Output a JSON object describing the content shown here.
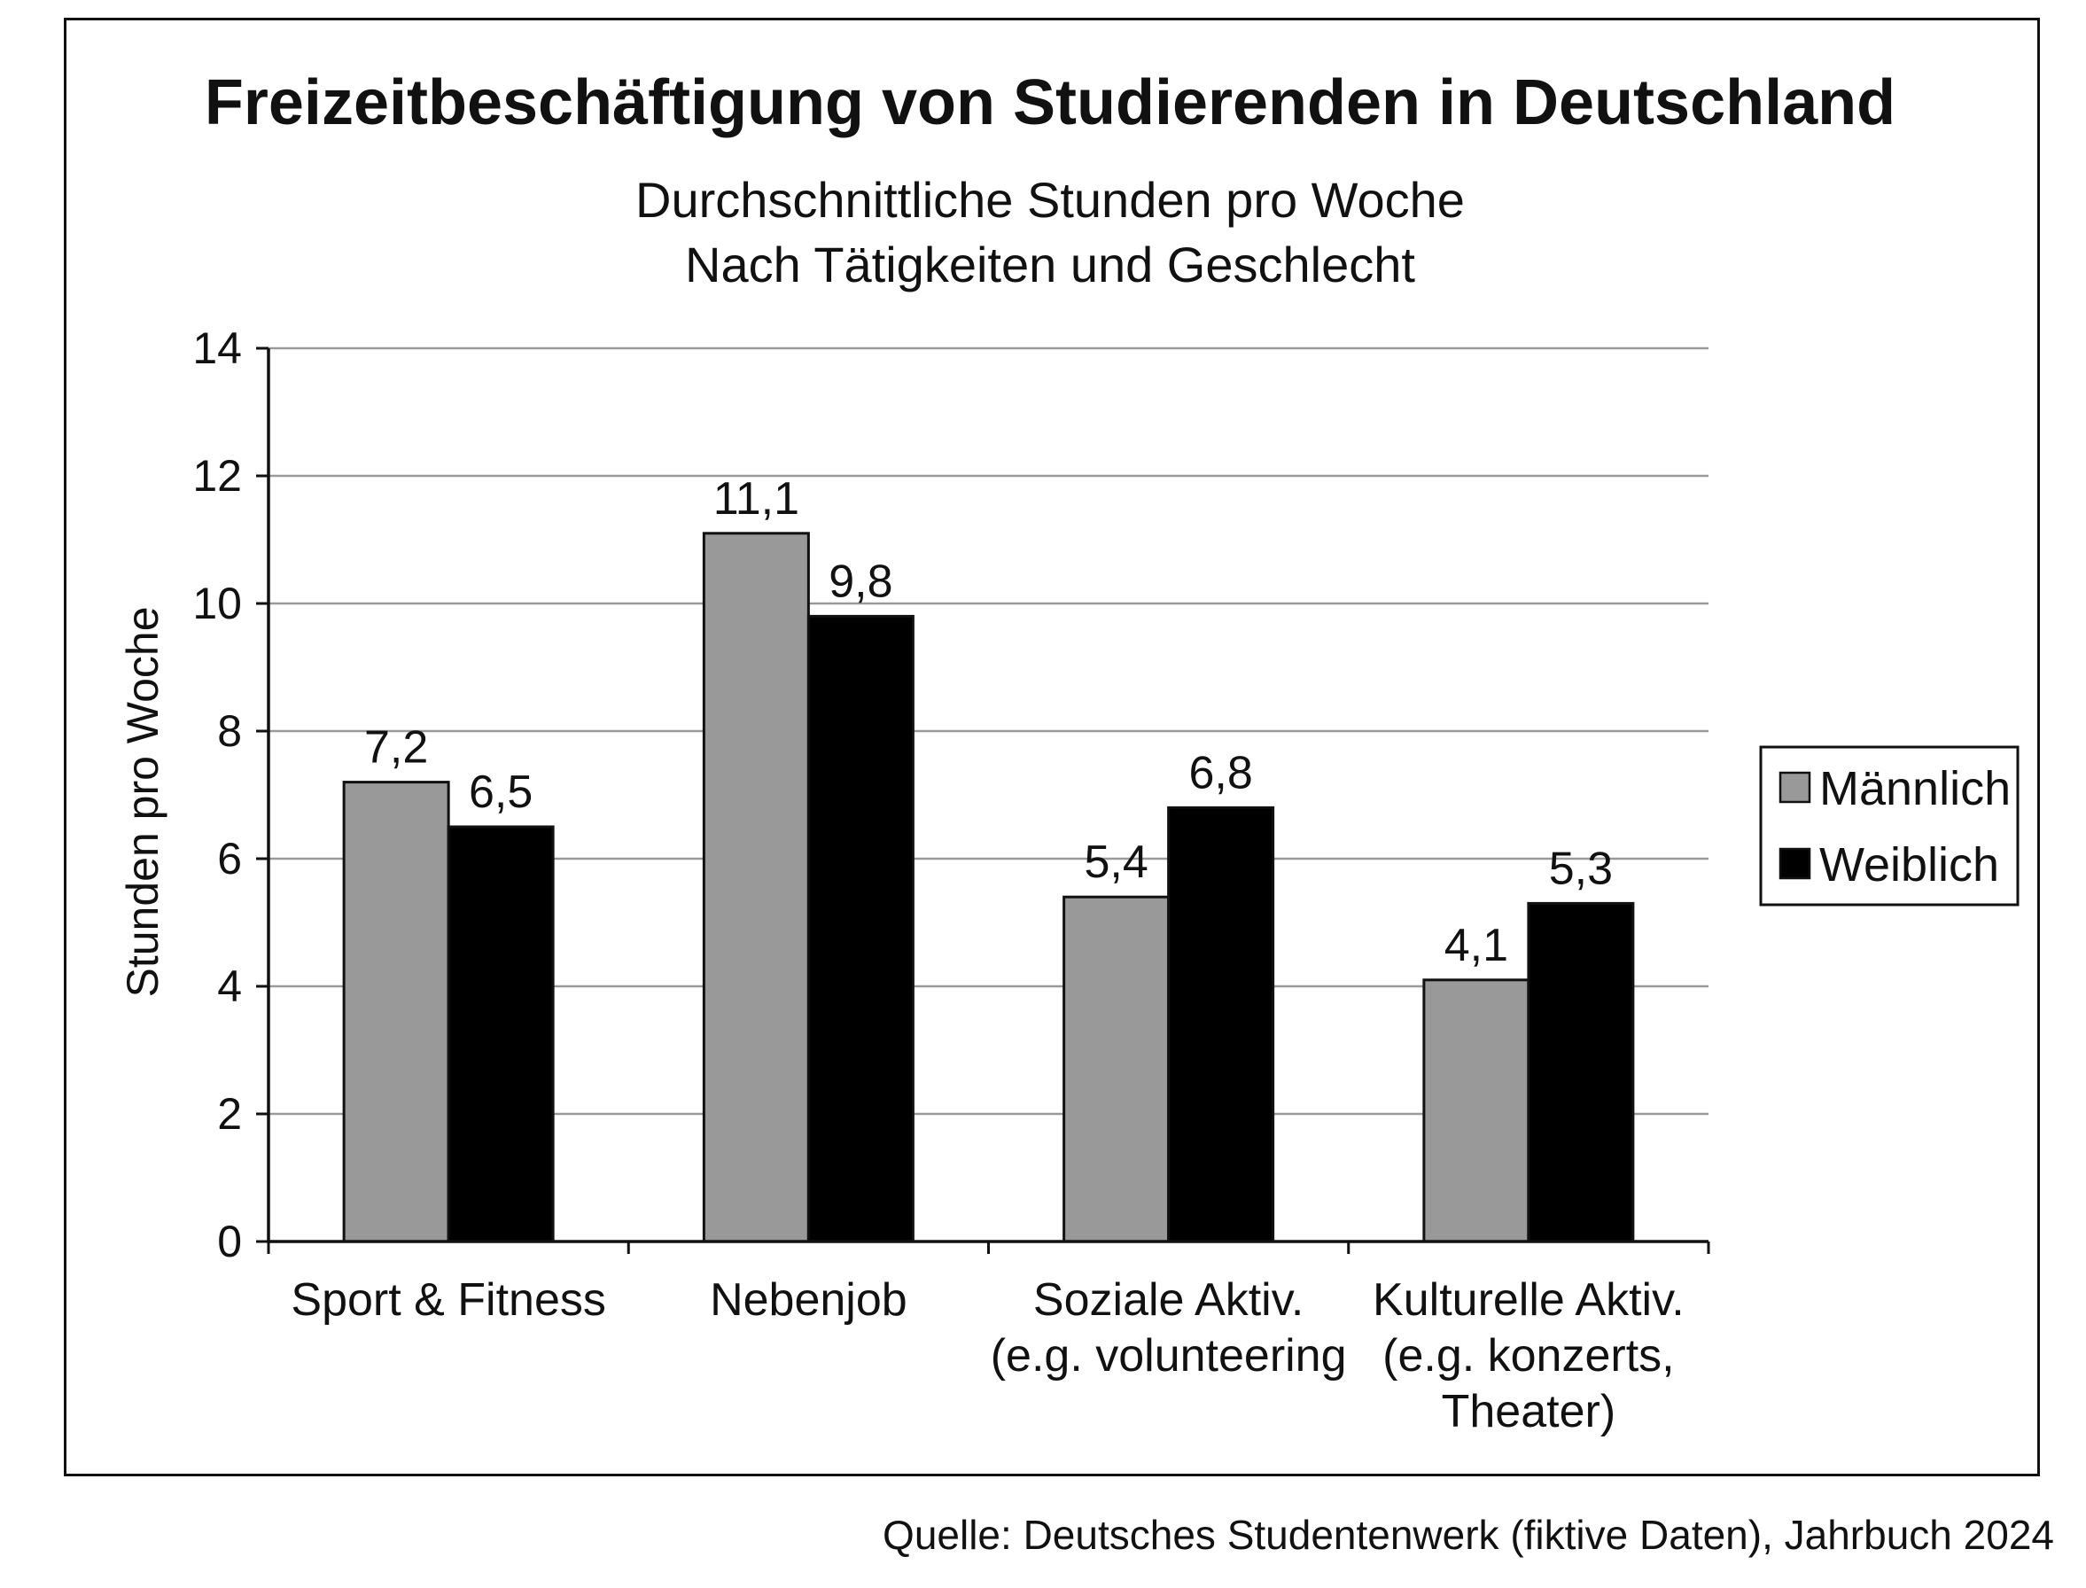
{
  "chart_data": {
    "type": "bar",
    "title": "Freizeitbeschäftigung von Studierenden in Deutschland",
    "subtitle_lines": [
      "Durchschnittliche Stunden pro Woche",
      "Nach Tätigkeiten und Geschlecht"
    ],
    "ylabel": "Stunden pro Woche",
    "xlabel": "",
    "ylim": [
      0,
      14
    ],
    "yticks": [
      "0",
      "2",
      "4",
      "6",
      "8",
      "10",
      "12",
      "14"
    ],
    "grid": true,
    "legend_position": "right",
    "categories": [
      [
        "Sport & Fitness"
      ],
      [
        "Nebenjob"
      ],
      [
        "Soziale Aktiv.",
        "(e.g. volunteering"
      ],
      [
        "Kulturelle Aktiv.",
        "(e.g. konzerts,",
        "Theater)"
      ]
    ],
    "series": [
      {
        "name": "Männlich",
        "color": "#999999",
        "values": [
          7.2,
          11.1,
          5.4,
          4.1
        ],
        "labels": [
          "7,2",
          "11,1",
          "5,4",
          "4,1"
        ]
      },
      {
        "name": "Weiblich",
        "color": "#000000",
        "values": [
          6.5,
          9.8,
          6.8,
          5.3
        ],
        "labels": [
          "6,5",
          "9,8",
          "6,8",
          "5,3"
        ]
      }
    ]
  },
  "source": "Quelle: Deutsches Studentenwerk (fiktive Daten), Jahrbuch 2024"
}
